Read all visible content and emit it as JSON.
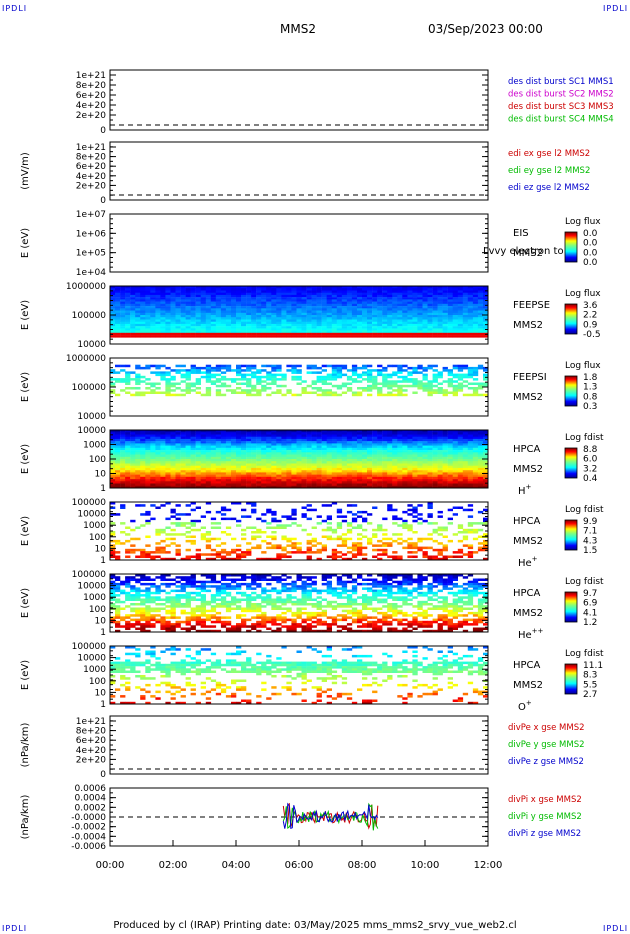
{
  "corner_label": "IPDLI",
  "header": {
    "spacecraft": "MMS2",
    "datetime": "03/Sep/2023 00:00"
  },
  "footer": "Produced by cl (IRAP)   Printing date: 03/May/2025   mms_mms2_srvy_vue_web2.cl",
  "chart_data": [
    {
      "type": "line",
      "panel": "des-dist",
      "ylabel": "",
      "yticks": [
        "1e+21",
        "8e+20",
        "6e+20",
        "4e+20",
        "2e+20",
        "0"
      ],
      "legend": [
        {
          "text": "des dist burst SC1 MMS1",
          "color": "#0000cc"
        },
        {
          "text": "des dist burst SC2 MMS2",
          "color": "#cc00cc"
        },
        {
          "text": "des dist burst SC3 MMS3",
          "color": "#cc0000"
        },
        {
          "text": "des dist burst SC4 MMS4",
          "color": "#00bb00"
        }
      ],
      "dashed_zero": true
    },
    {
      "type": "line",
      "panel": "edi",
      "ylabel": "(mV/m)",
      "yticks": [
        "1e+21",
        "8e+20",
        "6e+20",
        "4e+20",
        "2e+20",
        "0"
      ],
      "legend": [
        {
          "text": "edi ex gse l2 MMS2",
          "color": "#cc0000"
        },
        {
          "text": "edi ey gse l2 MMS2",
          "color": "#00bb00"
        },
        {
          "text": "edi ez gse l2 MMS2",
          "color": "#0000cc"
        }
      ],
      "dashed_zero": true
    },
    {
      "type": "heatmap",
      "panel": "eis",
      "ylabel": "E (eV)",
      "yticks": [
        "1e+07",
        "1e+06",
        "1e+05",
        "1e+04"
      ],
      "labels": [
        "EIS",
        "MMS2"
      ],
      "overlay_text": "Lvvy electron to",
      "cbar_title": "Log flux",
      "cbar_ticks": [
        "0.0",
        "0.0",
        "0.0",
        "0.0"
      ]
    },
    {
      "type": "heatmap",
      "panel": "feepse",
      "ylabel": "E (eV)",
      "yticks": [
        "1000000",
        "100000",
        "10000"
      ],
      "labels": [
        "FEEPSE",
        "MMS2"
      ],
      "cbar_title": "Log flux",
      "cbar_ticks": [
        "3.6",
        "2.2",
        "0.9",
        "-0.5"
      ]
    },
    {
      "type": "heatmap",
      "panel": "feepsi",
      "ylabel": "E (eV)",
      "yticks": [
        "1000000",
        "100000",
        "10000"
      ],
      "labels": [
        "FEEPSI",
        "MMS2"
      ],
      "cbar_title": "Log flux",
      "cbar_ticks": [
        "1.8",
        "1.3",
        "0.8",
        "0.3"
      ]
    },
    {
      "type": "heatmap",
      "panel": "hpca-h",
      "ylabel": "E (eV)",
      "yticks": [
        "10000",
        "1000",
        "100",
        "10",
        "1"
      ],
      "labels": [
        "HPCA",
        "MMS2",
        "H+"
      ],
      "cbar_title": "Log fdist",
      "cbar_ticks": [
        "8.8",
        "6.0",
        "3.2",
        "0.4"
      ]
    },
    {
      "type": "heatmap",
      "panel": "hpca-he",
      "ylabel": "E (eV)",
      "yticks": [
        "100000",
        "10000",
        "1000",
        "100",
        "10",
        "1"
      ],
      "labels": [
        "HPCA",
        "MMS2",
        "He+"
      ],
      "cbar_title": "Log fdist",
      "cbar_ticks": [
        "9.9",
        "7.1",
        "4.3",
        "1.5"
      ]
    },
    {
      "type": "heatmap",
      "panel": "hpca-hepp",
      "ylabel": "E (eV)",
      "yticks": [
        "100000",
        "10000",
        "1000",
        "100",
        "10",
        "1"
      ],
      "labels": [
        "HPCA",
        "MMS2",
        "He++"
      ],
      "cbar_title": "Log fdist",
      "cbar_ticks": [
        "9.7",
        "6.9",
        "4.1",
        "1.2"
      ]
    },
    {
      "type": "heatmap",
      "panel": "hpca-o",
      "ylabel": "E (eV)",
      "yticks": [
        "100000",
        "10000",
        "1000",
        "100",
        "10",
        "1"
      ],
      "labels": [
        "HPCA",
        "MMS2",
        "O+"
      ],
      "cbar_title": "Log fdist",
      "cbar_ticks": [
        "11.1",
        "8.3",
        "5.5",
        "2.7"
      ]
    },
    {
      "type": "line",
      "panel": "divpe",
      "ylabel": "(nPa/km)",
      "yticks": [
        "1e+21",
        "8e+20",
        "6e+20",
        "4e+20",
        "2e+20",
        "0"
      ],
      "legend": [
        {
          "text": "divPe x gse MMS2",
          "color": "#cc0000"
        },
        {
          "text": "divPe y gse MMS2",
          "color": "#00bb00"
        },
        {
          "text": "divPe z gse MMS2",
          "color": "#0000cc"
        }
      ],
      "dashed_zero": true
    },
    {
      "type": "line",
      "panel": "divpi",
      "ylabel": "(nPa/km)",
      "yticks": [
        "0.0006",
        "0.0004",
        "0.0002",
        "-0.0000",
        "-0.0002",
        "-0.0004",
        "-0.0006"
      ],
      "legend": [
        {
          "text": "divPi x gse MMS2",
          "color": "#cc0000"
        },
        {
          "text": "divPi y gse MMS2",
          "color": "#00bb00"
        },
        {
          "text": "divPi z gse MMS2",
          "color": "#0000cc"
        }
      ],
      "dashed_zero": true,
      "data_interval": [
        "05:30",
        "08:30"
      ]
    }
  ],
  "xaxis": {
    "ticks": [
      "00:00",
      "02:00",
      "04:00",
      "06:00",
      "08:00",
      "10:00",
      "12:00"
    ],
    "range_hours": [
      0,
      12
    ]
  }
}
